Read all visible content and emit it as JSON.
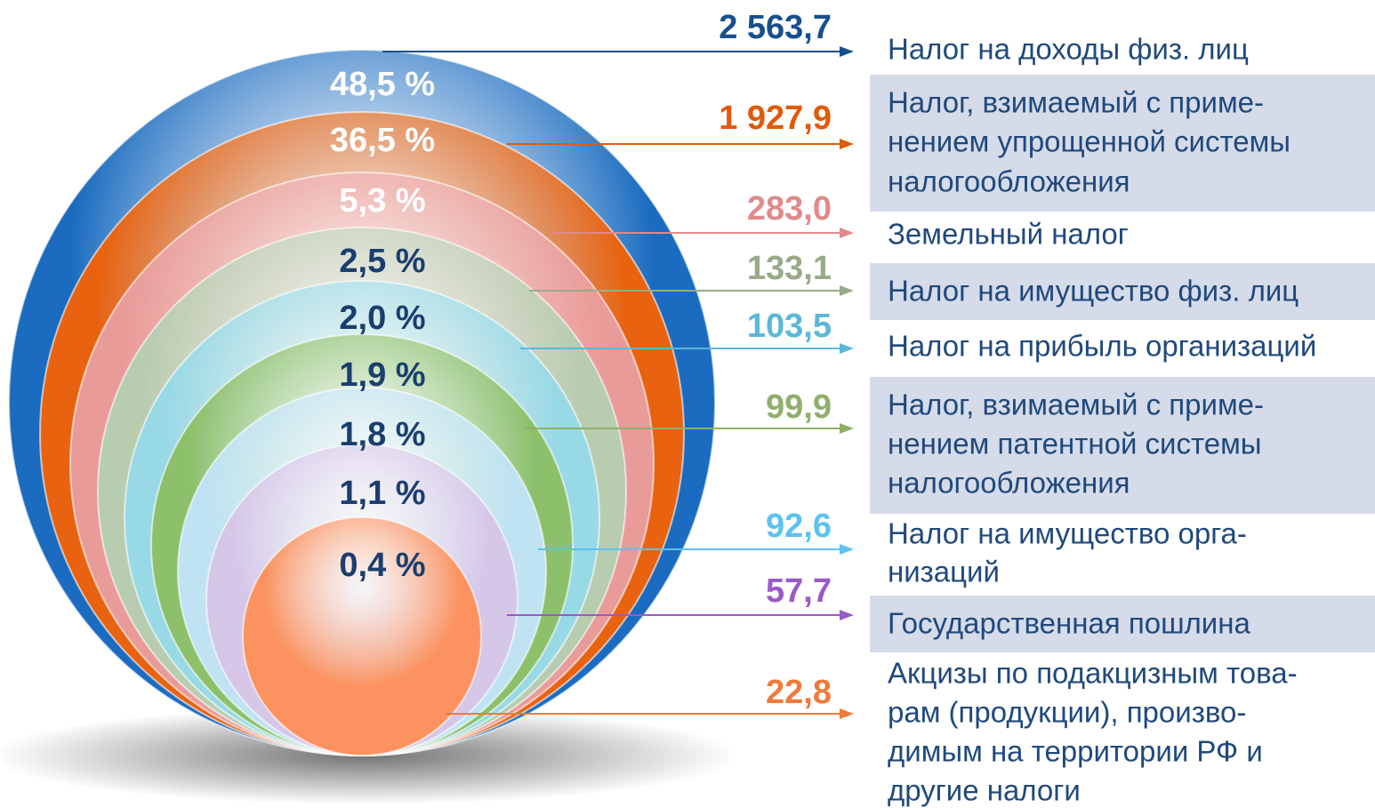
{
  "items": [
    {
      "percent": "48,5 %",
      "value": "2 563,7",
      "label": [
        "Налог на доходы физ. лиц"
      ]
    },
    {
      "percent": "36,5 %",
      "value": "1 927,9",
      "label": [
        "Налог, взимаемый с приме-",
        "нением упрощенной системы",
        "налогообложения"
      ]
    },
    {
      "percent": "5,3 %",
      "value": "283,0",
      "label": [
        "Земельный налог"
      ]
    },
    {
      "percent": "2,5 %",
      "value": "133,1",
      "label": [
        "Налог на имущество физ. лиц"
      ]
    },
    {
      "percent": "2,0 %",
      "value": "103,5",
      "label": [
        "Налог на прибыль организаций"
      ]
    },
    {
      "percent": "1,9 %",
      "value": "99,9",
      "label": [
        "Налог, взимаемый с приме-",
        "нением патентной системы",
        "налогообложения"
      ]
    },
    {
      "percent": "1,8 %",
      "value": "92,6",
      "label": [
        "Налог на имущество орга-",
        "низаций"
      ]
    },
    {
      "percent": "1,1 %",
      "value": "57,7",
      "label": [
        "Государственная пошлина"
      ]
    },
    {
      "percent": "0,4 %",
      "value": "22,8",
      "label": [
        "Акцизы по подакцизным това-",
        "рам (продукции), произво-",
        "димым на территории РФ и",
        "другие налоги"
      ]
    }
  ]
}
